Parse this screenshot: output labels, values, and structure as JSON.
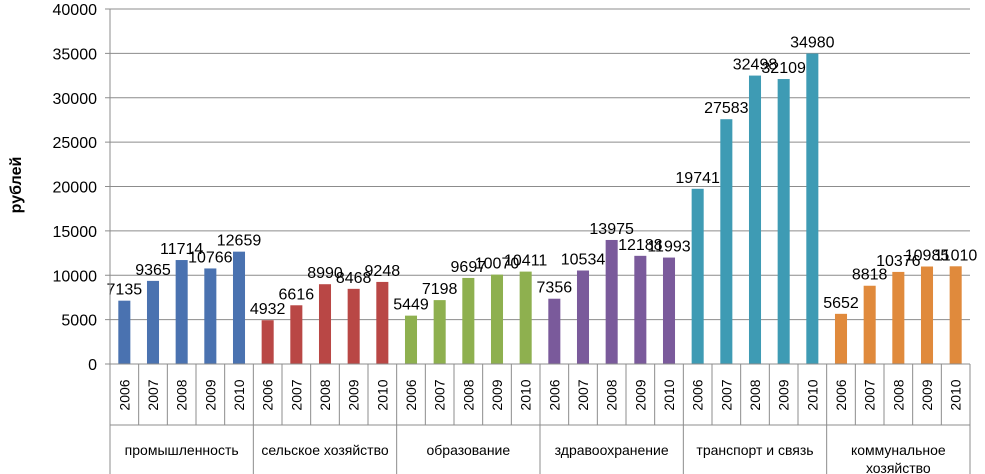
{
  "chart_data": {
    "type": "bar",
    "ylabel": "рублей",
    "ylim": [
      0,
      40000
    ],
    "ytick_step": 5000,
    "yticks": [
      "0",
      "5000",
      "10000",
      "15000",
      "20000",
      "25000",
      "30000",
      "35000",
      "40000"
    ],
    "grid": true,
    "legend": "none",
    "years": [
      "2006",
      "2007",
      "2008",
      "2009",
      "2010"
    ],
    "groups": [
      {
        "name": "промышленность",
        "lines": [
          "промышленность"
        ],
        "color": "#4a72b0",
        "values": [
          7135,
          9365,
          11714,
          10766,
          12659
        ]
      },
      {
        "name": "сельское хозяйство",
        "lines": [
          "сельское хозяйство"
        ],
        "color": "#b94745",
        "values": [
          4932,
          6616,
          8990,
          8468,
          9248
        ]
      },
      {
        "name": "образование",
        "lines": [
          "образование"
        ],
        "color": "#8eb04f",
        "values": [
          5449,
          7198,
          9697,
          10070,
          10411
        ]
      },
      {
        "name": "здравоохранение",
        "lines": [
          "здравоохранение"
        ],
        "color": "#7a5a9b",
        "values": [
          7356,
          10534,
          13975,
          12188,
          11993
        ]
      },
      {
        "name": "транспорт и связь",
        "lines": [
          "транспорт и связь"
        ],
        "color": "#3e9bb4",
        "values": [
          19741,
          27583,
          32498,
          32109,
          34980
        ]
      },
      {
        "name": "коммунальное хозяйство",
        "lines": [
          "коммунальное",
          "хозяйство"
        ],
        "color": "#e08a3c",
        "values": [
          5652,
          8818,
          10376,
          10985,
          11010
        ]
      }
    ]
  }
}
